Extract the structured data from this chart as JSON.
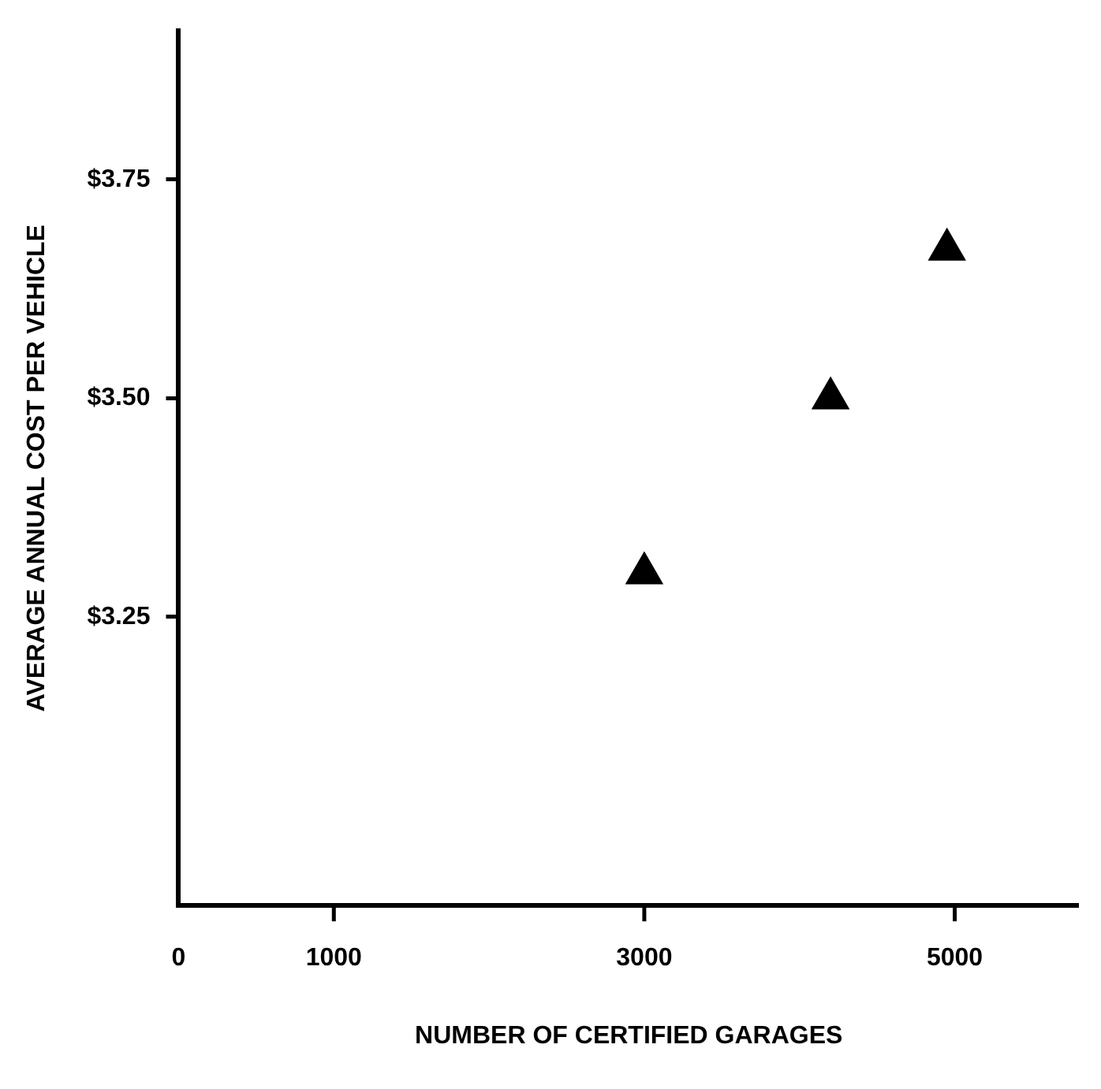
{
  "chart_data": {
    "type": "scatter",
    "xlabel": "NUMBER OF CERTIFIED GARAGES",
    "ylabel": "AVERAGE ANNUAL COST PER VEHICLE",
    "x": [
      3000,
      4200,
      4950
    ],
    "values": [
      3.3,
      3.5,
      3.67
    ],
    "color": "#000000",
    "marker": "triangle",
    "xlim": [
      0,
      5800
    ],
    "xticks": [
      0,
      1000,
      3000,
      5000
    ],
    "ylim": [
      2.92,
      3.92
    ],
    "yticks": [
      {
        "value": 3.25,
        "label": "$3.25"
      },
      {
        "value": 3.5,
        "label": "$3.50"
      },
      {
        "value": 3.75,
        "label": "$3.75"
      }
    ],
    "grid": false,
    "legend": false
  }
}
